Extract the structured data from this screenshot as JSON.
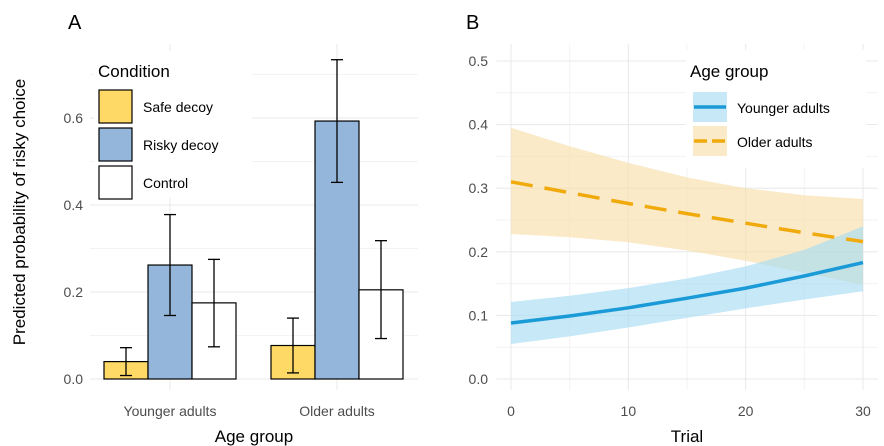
{
  "panels": {
    "a_letter": "A",
    "b_letter": "B"
  },
  "chart_data": [
    {
      "type": "bar",
      "panel": "A",
      "xlabel": "Age group",
      "ylabel": "Predicted probability of risky choice",
      "ylim": [
        0,
        0.8
      ],
      "yticks": [
        0.0,
        0.2,
        0.4,
        0.6
      ],
      "ytick_labels": [
        "0.0",
        "0.2",
        "0.4",
        "0.6"
      ],
      "categories": [
        "Younger adults",
        "Older adults"
      ],
      "grid": true,
      "legend": {
        "title": "Condition",
        "placement": "top-left"
      },
      "series": [
        {
          "name": "Safe decoy",
          "color": "#FFD966",
          "values": [
            0.04,
            0.077
          ],
          "ci_low": [
            0.008,
            0.014
          ],
          "ci_high": [
            0.072,
            0.14
          ]
        },
        {
          "name": "Risky decoy",
          "color": "#94B6DA",
          "values": [
            0.262,
            0.593
          ],
          "ci_low": [
            0.146,
            0.452
          ],
          "ci_high": [
            0.378,
            0.734
          ]
        },
        {
          "name": "Control",
          "color": "#FFFFFF",
          "values": [
            0.175,
            0.205
          ],
          "ci_low": [
            0.074,
            0.093
          ],
          "ci_high": [
            0.275,
            0.318
          ]
        }
      ]
    },
    {
      "type": "line",
      "panel": "B",
      "xlabel": "Trial",
      "ylabel": "",
      "xlim": [
        0,
        30
      ],
      "ylim": [
        0,
        0.5
      ],
      "xticks": [
        0,
        10,
        20,
        30
      ],
      "xtick_labels": [
        "0",
        "10",
        "20",
        "30"
      ],
      "yticks": [
        0.0,
        0.1,
        0.2,
        0.3,
        0.4,
        0.5
      ],
      "ytick_labels": [
        "0.0",
        "0.1",
        "0.2",
        "0.3",
        "0.4",
        "0.5"
      ],
      "grid": true,
      "legend": {
        "title": "Age group",
        "placement": "top-right"
      },
      "series": [
        {
          "name": "Younger adults",
          "color": "#1A9BD7",
          "band_color": "#A8DCF2",
          "dash": "solid",
          "x": [
            0,
            5,
            10,
            15,
            20,
            25,
            30
          ],
          "y": [
            0.088,
            0.099,
            0.112,
            0.127,
            0.143,
            0.162,
            0.183
          ],
          "lower": [
            0.055,
            0.067,
            0.081,
            0.096,
            0.111,
            0.125,
            0.138
          ],
          "upper": [
            0.121,
            0.131,
            0.143,
            0.158,
            0.177,
            0.203,
            0.24
          ]
        },
        {
          "name": "Older adults",
          "color": "#F0AA0C",
          "band_color": "#F7DEAA",
          "dash": "dashed",
          "x": [
            0,
            5,
            10,
            15,
            20,
            25,
            30
          ],
          "y": [
            0.31,
            0.293,
            0.276,
            0.26,
            0.245,
            0.23,
            0.216
          ],
          "lower": [
            0.228,
            0.223,
            0.215,
            0.202,
            0.186,
            0.167,
            0.148
          ],
          "upper": [
            0.395,
            0.366,
            0.34,
            0.317,
            0.3,
            0.289,
            0.283
          ]
        }
      ]
    }
  ]
}
